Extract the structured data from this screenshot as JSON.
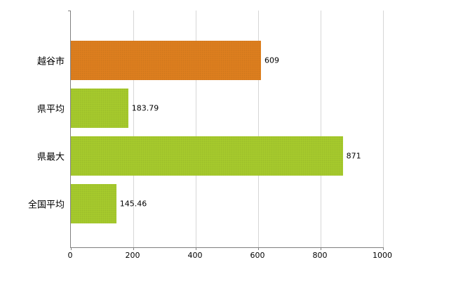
{
  "chart_data": {
    "type": "bar",
    "orientation": "horizontal",
    "title": "",
    "xlabel": "",
    "ylabel": "",
    "categories": [
      "越谷市",
      "県平均",
      "県最大",
      "全国平均"
    ],
    "values": [
      609,
      183.79,
      871,
      145.46
    ],
    "value_labels": [
      "609",
      "183.79",
      "871",
      "145.46"
    ],
    "bar_colors": [
      "#e0801f",
      "#a8cc2d",
      "#a8cc2d",
      "#a8cc2d"
    ],
    "xlim": [
      0,
      1000
    ],
    "x_ticks": [
      0,
      200,
      400,
      600,
      800,
      1000
    ],
    "x_tick_labels": [
      "0",
      "200",
      "400",
      "600",
      "800",
      "1000"
    ],
    "grid": true,
    "legend": false,
    "colors": {
      "axis": "#808080",
      "gridline": "#d6d6d6",
      "background": "#ffffff",
      "highlight_bar": "#e0801f",
      "default_bar": "#a8cc2d"
    }
  }
}
